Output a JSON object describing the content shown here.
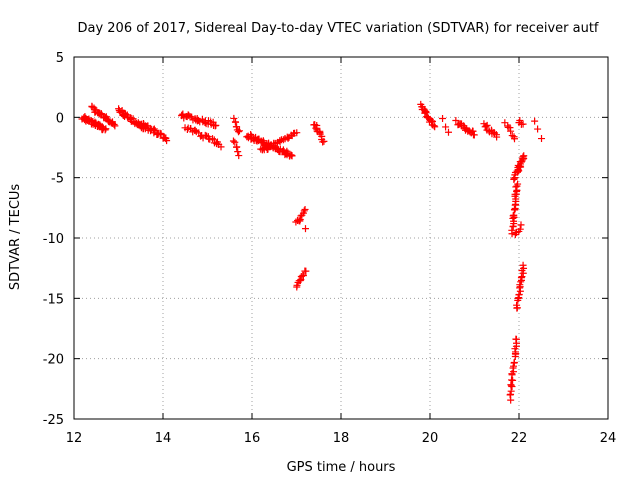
{
  "chart_data": {
    "type": "scatter",
    "title": "Day 206 of 2017, Sidereal Day-to-day VTEC variation (SDTVAR) for receiver autf",
    "xlabel": "GPS time / hours",
    "ylabel": "SDTVAR / TECUs",
    "xlim": [
      12,
      24
    ],
    "ylim": [
      -25,
      5
    ],
    "xticks": [
      12,
      14,
      16,
      18,
      20,
      22,
      24
    ],
    "yticks": [
      5,
      0,
      -5,
      -10,
      -15,
      -20,
      -25
    ],
    "grid": true,
    "marker": "plus",
    "series": [
      {
        "name": "SDTVAR",
        "color": "#ff0000",
        "segments": [
          {
            "x0": 12.2,
            "x1": 12.7,
            "y0": 0.0,
            "y1": -1.0,
            "n": 40
          },
          {
            "x0": 12.4,
            "x1": 12.9,
            "y0": 0.8,
            "y1": -0.6,
            "n": 30
          },
          {
            "x0": 13.0,
            "x1": 13.6,
            "y0": 0.6,
            "y1": -1.0,
            "n": 40
          },
          {
            "x0": 13.5,
            "x1": 14.1,
            "y0": -0.5,
            "y1": -1.8,
            "n": 30
          },
          {
            "x0": 14.4,
            "x1": 15.2,
            "y0": 0.2,
            "y1": -0.6,
            "n": 30
          },
          {
            "x0": 14.5,
            "x1": 15.3,
            "y0": -0.8,
            "y1": -2.3,
            "n": 25
          },
          {
            "x0": 15.6,
            "x1": 15.7,
            "y0": -0.2,
            "y1": -1.2,
            "n": 8
          },
          {
            "x0": 15.6,
            "x1": 15.7,
            "y0": -2.0,
            "y1": -3.0,
            "n": 6
          },
          {
            "x0": 15.9,
            "x1": 16.9,
            "y0": -1.5,
            "y1": -3.2,
            "n": 60
          },
          {
            "x0": 16.2,
            "x1": 17.0,
            "y0": -2.8,
            "y1": -1.4,
            "n": 30
          },
          {
            "x0": 17.4,
            "x1": 17.6,
            "y0": -0.5,
            "y1": -2.0,
            "n": 14
          },
          {
            "x0": 17.0,
            "x1": 17.2,
            "y0": -8.8,
            "y1": -7.8,
            "n": 10
          },
          {
            "x0": 17.2,
            "x1": 17.25,
            "y0": -9.4,
            "y1": -9.4,
            "n": 1
          },
          {
            "x0": 17.0,
            "x1": 17.2,
            "y0": -14.0,
            "y1": -12.8,
            "n": 12
          },
          {
            "x0": 19.8,
            "x1": 20.1,
            "y0": 1.0,
            "y1": -0.8,
            "n": 20
          },
          {
            "x0": 20.3,
            "x1": 20.4,
            "y0": 0.0,
            "y1": -1.3,
            "n": 3
          },
          {
            "x0": 20.6,
            "x1": 21.0,
            "y0": -0.4,
            "y1": -1.4,
            "n": 20
          },
          {
            "x0": 21.2,
            "x1": 21.5,
            "y0": -0.6,
            "y1": -1.6,
            "n": 14
          },
          {
            "x0": 21.7,
            "x1": 21.9,
            "y0": -0.4,
            "y1": -1.8,
            "n": 8
          },
          {
            "x0": 22.0,
            "x1": 22.1,
            "y0": -0.3,
            "y1": -0.6,
            "n": 4
          },
          {
            "x0": 22.35,
            "x1": 22.5,
            "y0": -0.3,
            "y1": -1.6,
            "n": 3
          },
          {
            "x0": 21.9,
            "x1": 22.1,
            "y0": -5.0,
            "y1": -3.2,
            "n": 25
          },
          {
            "x0": 21.85,
            "x1": 21.95,
            "y0": -9.5,
            "y1": -5.5,
            "n": 25
          },
          {
            "x0": 21.9,
            "x1": 22.05,
            "y0": -9.8,
            "y1": -9.0,
            "n": 6
          },
          {
            "x0": 21.95,
            "x1": 22.1,
            "y0": -15.8,
            "y1": -12.4,
            "n": 20
          },
          {
            "x0": 21.8,
            "x1": 21.95,
            "y0": -23.3,
            "y1": -18.3,
            "n": 25
          }
        ]
      }
    ]
  }
}
